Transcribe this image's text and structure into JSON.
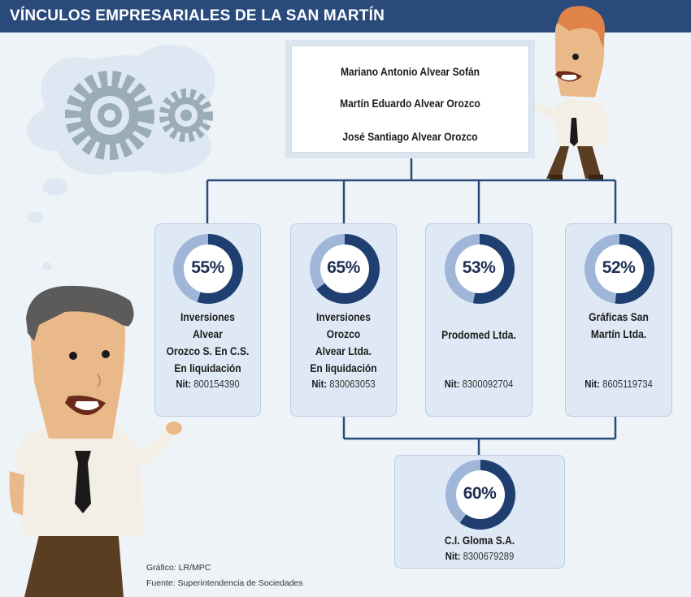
{
  "header": {
    "title": "VÍNCULOS EMPRESARIALES DE LA SAN MARTÍN"
  },
  "owners": [
    "Mariano Antonio Alvear Sofán",
    "Martín Eduardo Alvear Orozco",
    "José Santiago Alvear Orozco"
  ],
  "companies": [
    {
      "name_lines": [
        "Inversiones Alvear",
        "Orozco S. En C.S.",
        "En liquidación"
      ],
      "percent": 55,
      "percent_label": "55%",
      "nit_label": "Nit:",
      "nit_value": "800154390"
    },
    {
      "name_lines": [
        "Inversiones Orozco",
        "Alvear Ltda.",
        "En liquidación"
      ],
      "percent": 65,
      "percent_label": "65%",
      "nit_label": "Nit:",
      "nit_value": "830063053"
    },
    {
      "name_lines": [
        "Prodomed Ltda."
      ],
      "percent": 53,
      "percent_label": "53%",
      "nit_label": "Nit:",
      "nit_value": "8300092704"
    },
    {
      "name_lines": [
        "Gráficas San",
        "Martín Ltda."
      ],
      "percent": 52,
      "percent_label": "52%",
      "nit_label": "Nit:",
      "nit_value": "8605119734"
    }
  ],
  "subsidiary": {
    "name_lines": [
      "C.I. Gloma S.A."
    ],
    "percent": 60,
    "percent_label": "60%",
    "nit_label": "Nit:",
    "nit_value": "8300679289"
  },
  "credits": {
    "grafico": "Gráfico: LR/MPC",
    "fuente": "Fuente: Superintendencia de Sociedades"
  },
  "colors": {
    "header": "#2a4a7c",
    "donut_dark": "#1e3f70",
    "donut_light": "#9fb6d8",
    "card_bg": "#dfe9f5",
    "connector": "#2a4a7c"
  }
}
